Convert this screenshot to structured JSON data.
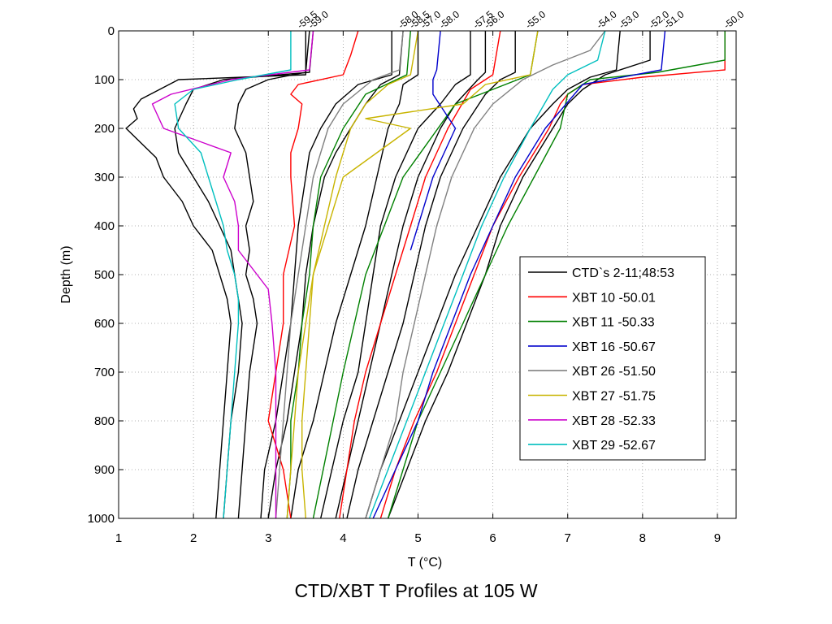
{
  "caption": "CTD/XBT T Profiles at 105 W",
  "chart_data": {
    "type": "line",
    "title": "",
    "xlabel": "T (°C)",
    "ylabel": "Depth (m)",
    "xlim": [
      1,
      9.25
    ],
    "ylim": [
      0,
      1000
    ],
    "y_reversed": true,
    "xticks": [
      1,
      2,
      3,
      4,
      5,
      6,
      7,
      8,
      9
    ],
    "yticks": [
      0,
      100,
      200,
      300,
      400,
      500,
      600,
      700,
      800,
      900,
      1000
    ],
    "grid": true,
    "legend_position": "lower-right",
    "latitude_labels": [
      {
        "label": "-59.5",
        "x": 3.45
      },
      {
        "label": "-59.0",
        "x": 3.6
      },
      {
        "label": "-58.0",
        "x": 4.8
      },
      {
        "label": "-58.5",
        "x": 4.95
      },
      {
        "label": "-57.0",
        "x": 5.1
      },
      {
        "label": "-58.0",
        "x": 5.35
      },
      {
        "label": "-57.5",
        "x": 5.8
      },
      {
        "label": "-56.0",
        "x": 5.95
      },
      {
        "label": "-55.0",
        "x": 6.5
      },
      {
        "label": "-54.0",
        "x": 7.45
      },
      {
        "label": "-53.0",
        "x": 7.75
      },
      {
        "label": "-52.0",
        "x": 8.15
      },
      {
        "label": "-51.0",
        "x": 8.35
      },
      {
        "label": "-50.0",
        "x": 9.15
      }
    ],
    "series": [
      {
        "name": "CTD`s 2-11;48:53",
        "color": "#000000",
        "profiles": [
          {
            "depth": [
              0,
              90,
              100,
              140,
              160,
              180,
              200,
              230,
              260,
              300,
              350,
              400,
              450,
              500,
              550,
              600,
              700,
              800,
              900,
              1000
            ],
            "temp": [
              3.5,
              3.5,
              1.8,
              1.3,
              1.2,
              1.25,
              1.1,
              1.3,
              1.5,
              1.6,
              1.85,
              2.0,
              2.25,
              2.35,
              2.45,
              2.5,
              2.45,
              2.4,
              2.35,
              2.3
            ]
          },
          {
            "depth": [
              0,
              85,
              100,
              120,
              150,
              200,
              250,
              300,
              350,
              400,
              450,
              500,
              550,
              600,
              700,
              800,
              900,
              1000
            ],
            "temp": [
              3.6,
              3.55,
              2.4,
              2.0,
              1.9,
              1.75,
              1.8,
              2.0,
              2.2,
              2.35,
              2.5,
              2.55,
              2.6,
              2.65,
              2.6,
              2.5,
              2.45,
              2.4
            ]
          },
          {
            "depth": [
              0,
              85,
              100,
              120,
              150,
              200,
              250,
              300,
              350,
              400,
              450,
              500,
              550,
              600,
              700,
              800,
              900,
              1000
            ],
            "temp": [
              3.55,
              3.5,
              3.0,
              2.7,
              2.6,
              2.55,
              2.7,
              2.75,
              2.8,
              2.7,
              2.75,
              2.7,
              2.8,
              2.85,
              2.75,
              2.7,
              2.65,
              2.6
            ]
          },
          {
            "depth": [
              0,
              90,
              110,
              150,
              200,
              250,
              300,
              400,
              500,
              600,
              700,
              800,
              900,
              1000
            ],
            "temp": [
              4.65,
              4.65,
              4.2,
              3.9,
              3.7,
              3.55,
              3.5,
              3.4,
              3.35,
              3.3,
              3.2,
              3.1,
              2.95,
              2.9
            ]
          },
          {
            "depth": [
              0,
              90,
              110,
              150,
              200,
              250,
              300,
              400,
              500,
              600,
              700,
              800,
              900,
              1000
            ],
            "temp": [
              4.8,
              4.75,
              4.5,
              4.3,
              4.1,
              3.9,
              3.75,
              3.6,
              3.5,
              3.45,
              3.35,
              3.25,
              3.1,
              3.0
            ]
          },
          {
            "depth": [
              0,
              90,
              110,
              150,
              200,
              300,
              400,
              500,
              600,
              700,
              800,
              900,
              1000
            ],
            "temp": [
              5.0,
              5.0,
              4.8,
              4.75,
              4.6,
              4.45,
              4.3,
              4.1,
              3.9,
              3.75,
              3.6,
              3.4,
              3.3
            ]
          },
          {
            "depth": [
              0,
              90,
              110,
              150,
              200,
              300,
              400,
              500,
              600,
              700,
              800,
              900,
              1000
            ],
            "temp": [
              5.7,
              5.7,
              5.5,
              5.3,
              5.0,
              4.7,
              4.5,
              4.4,
              4.3,
              4.2,
              4.0,
              3.85,
              3.7
            ]
          },
          {
            "depth": [
              0,
              85,
              100,
              150,
              200,
              300,
              400,
              500,
              600,
              700,
              800,
              900,
              1000
            ],
            "temp": [
              5.9,
              5.9,
              5.8,
              5.5,
              5.3,
              5.0,
              4.8,
              4.65,
              4.5,
              4.35,
              4.2,
              4.05,
              3.9
            ]
          },
          {
            "depth": [
              0,
              85,
              100,
              130,
              200,
              300,
              400,
              500,
              600,
              700,
              800,
              900,
              1000
            ],
            "temp": [
              6.3,
              6.3,
              6.1,
              5.9,
              5.6,
              5.3,
              5.1,
              4.95,
              4.8,
              4.6,
              4.4,
              4.2,
              4.05
            ]
          },
          {
            "depth": [
              0,
              80,
              95,
              120,
              150,
              200,
              300,
              400,
              500,
              600,
              700,
              800,
              900,
              1000
            ],
            "temp": [
              7.7,
              7.65,
              7.3,
              7.0,
              6.8,
              6.5,
              6.1,
              5.8,
              5.5,
              5.25,
              5.0,
              4.75,
              4.5,
              4.3
            ]
          },
          {
            "depth": [
              0,
              60,
              90,
              120,
              150,
              200,
              300,
              400,
              500,
              600,
              700,
              800,
              900,
              1000
            ],
            "temp": [
              8.1,
              8.1,
              7.5,
              7.2,
              7.0,
              6.8,
              6.4,
              6.1,
              5.9,
              5.65,
              5.4,
              5.1,
              4.85,
              4.6
            ]
          }
        ]
      },
      {
        "name": "XBT 10  -50.01",
        "color": "#ff0000",
        "profiles": [
          {
            "depth": [
              0,
              80,
              95,
              110,
              130,
              150,
              200,
              250,
              300,
              400,
              500,
              600,
              700,
              800,
              900,
              1000
            ],
            "temp": [
              9.1,
              9.1,
              8.0,
              7.2,
              7.0,
              6.9,
              6.75,
              6.55,
              6.35,
              6.0,
              5.75,
              5.5,
              5.25,
              4.95,
              4.7,
              4.5
            ]
          },
          {
            "depth": [
              0,
              50,
              90,
              110,
              130,
              150,
              200,
              250,
              300,
              400,
              500,
              600,
              700,
              800,
              850,
              900,
              1000
            ],
            "temp": [
              4.2,
              4.1,
              4.0,
              3.4,
              3.3,
              3.45,
              3.4,
              3.3,
              3.3,
              3.35,
              3.2,
              3.2,
              3.1,
              3.0,
              3.1,
              3.2,
              3.3
            ]
          },
          {
            "depth": [
              0,
              90,
              120,
              200,
              300,
              400,
              500,
              600,
              700,
              800,
              900,
              1000
            ],
            "temp": [
              6.1,
              6.0,
              5.7,
              5.4,
              5.1,
              4.9,
              4.7,
              4.5,
              4.3,
              4.15,
              4.05,
              3.95
            ]
          }
        ]
      },
      {
        "name": "XBT 11  -50.33",
        "color": "#008000",
        "profiles": [
          {
            "depth": [
              0,
              60,
              85,
              100,
              130,
              200,
              300,
              400,
              500,
              600,
              700,
              800,
              900,
              1000
            ],
            "temp": [
              9.1,
              9.1,
              8.2,
              7.3,
              7.0,
              6.9,
              6.55,
              6.2,
              5.9,
              5.6,
              5.3,
              5.0,
              4.8,
              4.6
            ]
          },
          {
            "depth": [
              0,
              90,
              130,
              200,
              300,
              400,
              500,
              600,
              700,
              800,
              900,
              1000
            ],
            "temp": [
              4.9,
              4.85,
              4.3,
              4.0,
              3.7,
              3.6,
              3.55,
              3.45,
              3.4,
              3.3,
              3.3,
              3.25
            ]
          },
          {
            "depth": [
              0,
              90,
              150,
              300,
              500,
              700,
              1000
            ],
            "temp": [
              6.6,
              6.5,
              5.5,
              4.8,
              4.3,
              4.0,
              3.6
            ]
          }
        ]
      },
      {
        "name": "XBT 16  -50.67",
        "color": "#0000cc",
        "profiles": [
          {
            "depth": [
              0,
              80,
              110,
              200,
              300,
              400,
              500,
              600,
              700,
              800,
              900,
              1000
            ],
            "temp": [
              8.3,
              8.25,
              7.2,
              6.7,
              6.3,
              6.0,
              5.7,
              5.45,
              5.2,
              5.0,
              4.7,
              4.4
            ]
          },
          {
            "depth": [
              0,
              80,
              100,
              130,
              200,
              300,
              400,
              450
            ],
            "temp": [
              5.3,
              5.25,
              5.2,
              5.2,
              5.5,
              5.2,
              5.0,
              4.9
            ]
          }
        ]
      },
      {
        "name": "XBT 26  -51.50",
        "color": "#808080",
        "profiles": [
          {
            "depth": [
              0,
              40,
              70,
              100,
              150,
              200,
              300,
              400,
              500,
              600,
              700,
              800,
              900,
              1000
            ],
            "temp": [
              7.5,
              7.3,
              6.8,
              6.4,
              6.0,
              5.75,
              5.45,
              5.25,
              5.1,
              4.95,
              4.8,
              4.7,
              4.5,
              4.3
            ]
          },
          {
            "depth": [
              0,
              80,
              100,
              150,
              200,
              300,
              400,
              500,
              600,
              700,
              800,
              900,
              1000
            ],
            "temp": [
              4.8,
              4.75,
              4.4,
              4.0,
              3.8,
              3.6,
              3.5,
              3.4,
              3.3,
              3.25,
              3.2,
              3.15,
              3.1
            ]
          }
        ]
      },
      {
        "name": "XBT 27  -51.75",
        "color": "#c8b400",
        "profiles": [
          {
            "depth": [
              0,
              90,
              110,
              150,
              180,
              200,
              300,
              400,
              500,
              600,
              700,
              800,
              900,
              1000
            ],
            "temp": [
              6.6,
              6.5,
              5.9,
              5.6,
              4.3,
              4.9,
              4.0,
              3.8,
              3.6,
              3.5,
              3.4,
              3.35,
              3.3,
              3.25
            ]
          },
          {
            "depth": [
              0,
              90,
              110,
              150,
              200,
              300,
              400,
              500,
              600,
              700,
              800,
              900,
              1000
            ],
            "temp": [
              5.0,
              4.9,
              4.6,
              4.3,
              4.1,
              3.9,
              3.75,
              3.6,
              3.55,
              3.5,
              3.45,
              3.45,
              3.5
            ]
          }
        ]
      },
      {
        "name": "XBT 28  -52.33",
        "color": "#cc00cc",
        "profiles": [
          {
            "depth": [
              0,
              80,
              100,
              130,
              150,
              200,
              250,
              300,
              350,
              400,
              450,
              500,
              530,
              600,
              700,
              800,
              900,
              1000
            ],
            "temp": [
              3.6,
              3.55,
              2.5,
              1.7,
              1.45,
              1.6,
              2.5,
              2.4,
              2.55,
              2.6,
              2.6,
              2.85,
              3.0,
              3.05,
              3.1,
              3.1,
              3.1,
              3.1
            ]
          }
        ]
      },
      {
        "name": "XBT 29  -52.67",
        "color": "#00bfbf",
        "profiles": [
          {
            "depth": [
              0,
              80,
              100,
              120,
              150,
              200,
              250,
              300,
              350,
              400,
              450,
              500,
              550,
              600,
              700,
              800,
              900,
              1000
            ],
            "temp": [
              3.3,
              3.3,
              2.6,
              2.0,
              1.75,
              1.8,
              2.1,
              2.2,
              2.3,
              2.4,
              2.45,
              2.55,
              2.6,
              2.6,
              2.55,
              2.5,
              2.45,
              2.4
            ]
          },
          {
            "depth": [
              0,
              60,
              90,
              120,
              200,
              300,
              400,
              500,
              600,
              700,
              800,
              900,
              1000
            ],
            "temp": [
              7.5,
              7.4,
              7.0,
              6.8,
              6.5,
              6.15,
              5.85,
              5.6,
              5.35,
              5.1,
              4.85,
              4.6,
              4.35
            ]
          }
        ]
      }
    ]
  }
}
